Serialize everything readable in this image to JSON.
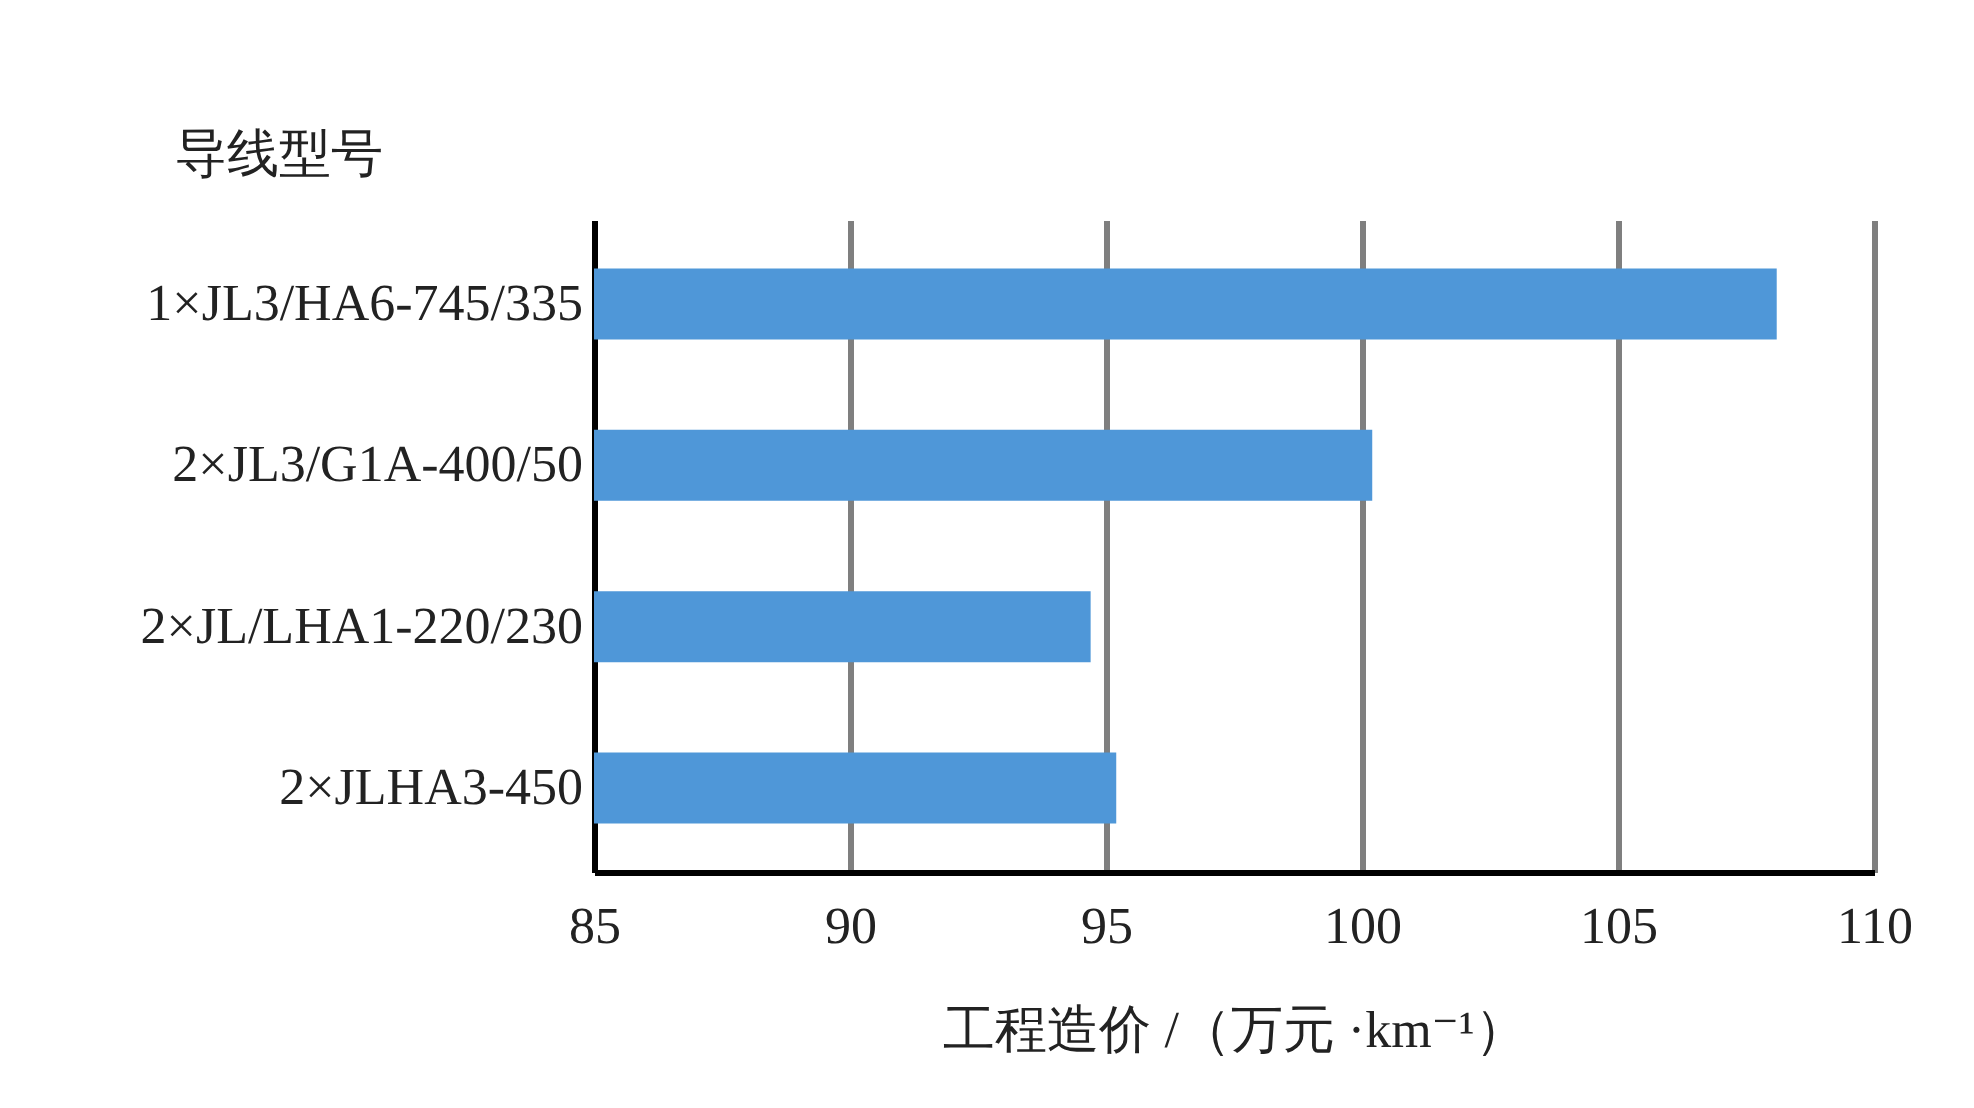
{
  "chart_data": {
    "type": "bar",
    "orientation": "horizontal",
    "ylabel": "导线型号",
    "xlabel": "工程造价 /（万元 ·km⁻¹）",
    "categories": [
      "1×JL3/HA6-745/335",
      "2×JL3/G1A-400/50",
      "2×JL/LHA1-220/230",
      "2×JLHA3-450"
    ],
    "values": [
      108.1,
      100.2,
      94.7,
      95.2
    ],
    "color": "#4f97d8",
    "xlim": [
      85,
      110
    ],
    "xticks": [
      85,
      90,
      95,
      100,
      105,
      110
    ],
    "grid": "x"
  }
}
